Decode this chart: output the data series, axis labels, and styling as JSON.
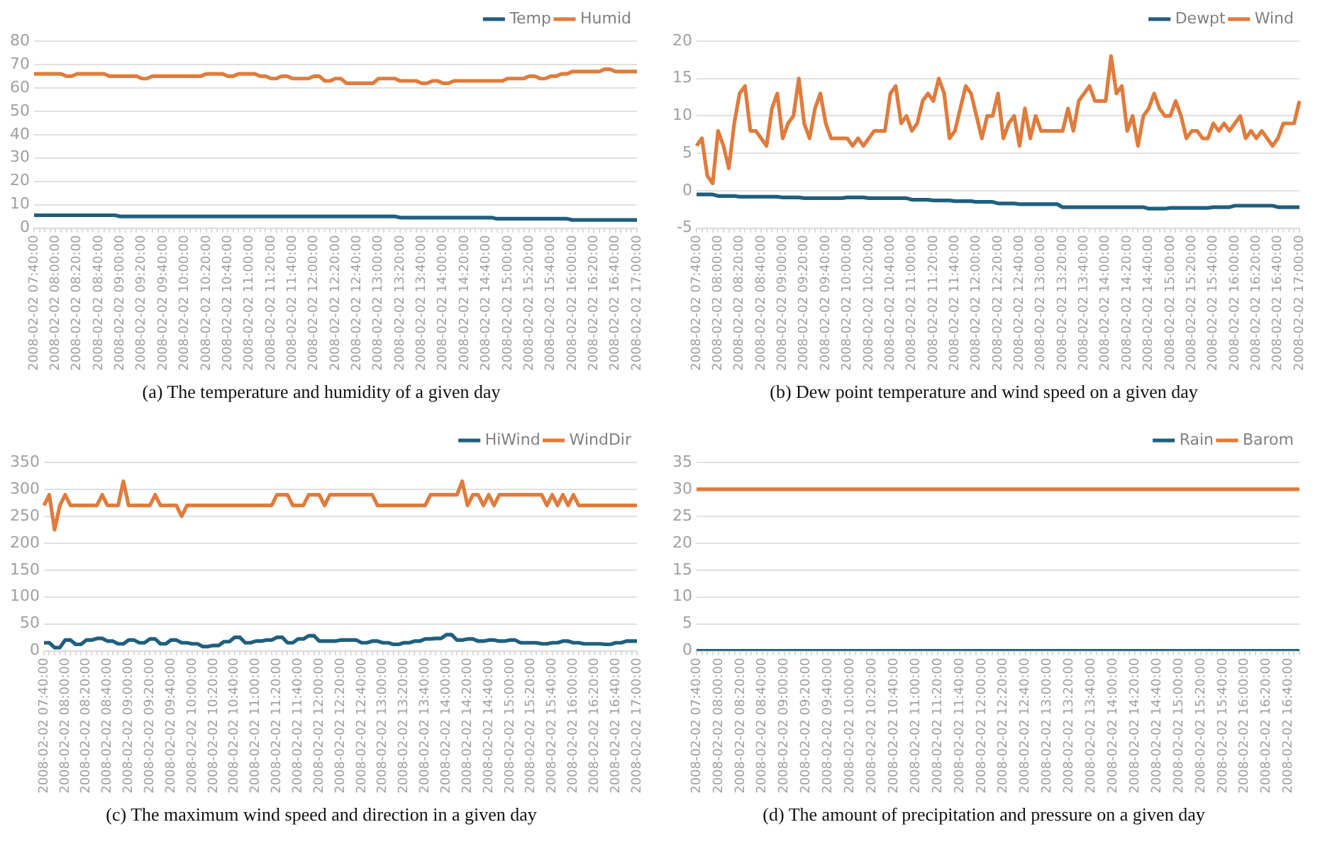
{
  "chart_data": [
    {
      "type": "line",
      "title": "(a) The temperature and humidity of a given day",
      "grid": "y",
      "legend": "top right",
      "marker": "none",
      "categories": [
        "2008-02-02 07:40:00",
        null,
        null,
        null,
        "2008-02-02 08:00:00",
        null,
        null,
        null,
        "2008-02-02 08:20:00",
        null,
        null,
        null,
        "2008-02-02 08:40:00",
        null,
        null,
        null,
        "2008-02-02 09:00:00",
        null,
        null,
        null,
        "2008-02-02 09:20:00",
        null,
        null,
        null,
        "2008-02-02 09:40:00",
        null,
        null,
        null,
        "2008-02-02 10:00:00",
        null,
        null,
        null,
        "2008-02-02 10:20:00",
        null,
        null,
        null,
        "2008-02-02 10:40:00",
        null,
        null,
        null,
        "2008-02-02 11:00:00",
        null,
        null,
        null,
        "2008-02-02 11:20:00",
        null,
        null,
        null,
        "2008-02-02 11:40:00",
        null,
        null,
        null,
        "2008-02-02 12:00:00",
        null,
        null,
        null,
        "2008-02-02 12:20:00",
        null,
        null,
        null,
        "2008-02-02 12:40:00",
        null,
        null,
        null,
        "2008-02-02 13:00:00",
        null,
        null,
        null,
        "2008-02-02 13:20:00",
        null,
        null,
        null,
        "2008-02-02 13:40:00",
        null,
        null,
        null,
        "2008-02-02 14:00:00",
        null,
        null,
        null,
        "2008-02-02 14:20:00",
        null,
        null,
        null,
        "2008-02-02 14:40:00",
        null,
        null,
        null,
        "2008-02-02 15:00:00",
        null,
        null,
        null,
        "2008-02-02 15:20:00",
        null,
        null,
        null,
        "2008-02-02 15:40:00",
        null,
        null,
        null,
        "2008-02-02 16:00:00",
        null,
        null,
        null,
        "2008-02-02 16:20:00",
        null,
        null,
        null,
        "2008-02-02 16:40:00",
        null,
        null,
        null,
        "2008-02-02 17:00:00"
      ],
      "ylim": [
        0,
        80
      ],
      "yticks": [
        0,
        10,
        20,
        30,
        40,
        50,
        60,
        70,
        80
      ],
      "series": [
        {
          "name": "Temp",
          "color": "#1f5f7e",
          "values": [
            5.5,
            5.5,
            5.5,
            5.5,
            5.5,
            5.5,
            5.5,
            5.5,
            5.5,
            5.5,
            5.5,
            5.5,
            5.5,
            5.5,
            5.5,
            5.5,
            5,
            5,
            5,
            5,
            5,
            5,
            5,
            5,
            5,
            5,
            5,
            5,
            5,
            5,
            5,
            5,
            5,
            5,
            5,
            5,
            5,
            5,
            5,
            5,
            5,
            5,
            5,
            5,
            5,
            5,
            5,
            5,
            5,
            5,
            5,
            5,
            5,
            5,
            5,
            5,
            5,
            5,
            5,
            5,
            5,
            5,
            5,
            5,
            5,
            5,
            5,
            5,
            4.5,
            4.5,
            4.5,
            4.5,
            4.5,
            4.5,
            4.5,
            4.5,
            4.5,
            4.5,
            4.5,
            4.5,
            4.5,
            4.5,
            4.5,
            4.5,
            4.5,
            4.5,
            4,
            4,
            4,
            4,
            4,
            4,
            4,
            4,
            4,
            4,
            4,
            4,
            4,
            4,
            3.5,
            3.5,
            3.5,
            3.5,
            3.5,
            3.5,
            3.5,
            3.5,
            3.5,
            3.5,
            3.5,
            3.5,
            3.5
          ]
        },
        {
          "name": "Humid",
          "color": "#e07b3c",
          "values": [
            66,
            66,
            66,
            66,
            66,
            66,
            65,
            65,
            66,
            66,
            66,
            66,
            66,
            66,
            65,
            65,
            65,
            65,
            65,
            65,
            64,
            64,
            65,
            65,
            65,
            65,
            65,
            65,
            65,
            65,
            65,
            65,
            66,
            66,
            66,
            66,
            65,
            65,
            66,
            66,
            66,
            66,
            65,
            65,
            64,
            64,
            65,
            65,
            64,
            64,
            64,
            64,
            65,
            65,
            63,
            63,
            64,
            64,
            62,
            62,
            62,
            62,
            62,
            62,
            64,
            64,
            64,
            64,
            63,
            63,
            63,
            63,
            62,
            62,
            63,
            63,
            62,
            62,
            63,
            63,
            63,
            63,
            63,
            63,
            63,
            63,
            63,
            63,
            64,
            64,
            64,
            64,
            65,
            65,
            64,
            64,
            65,
            65,
            66,
            66,
            67,
            67,
            67,
            67,
            67,
            67,
            68,
            68,
            67,
            67,
            67,
            67,
            67
          ]
        }
      ]
    },
    {
      "type": "line",
      "title": "(b) Dew point temperature and wind speed on a given day",
      "grid": "y",
      "legend": "top right",
      "marker": "none",
      "categories": [
        "2008-02-02 07:40:00",
        null,
        null,
        null,
        "2008-02-02 08:00:00",
        null,
        null,
        null,
        "2008-02-02 08:20:00",
        null,
        null,
        null,
        "2008-02-02 08:40:00",
        null,
        null,
        null,
        "2008-02-02 09:00:00",
        null,
        null,
        null,
        "2008-02-02 09:20:00",
        null,
        null,
        null,
        "2008-02-02 09:40:00",
        null,
        null,
        null,
        "2008-02-02 10:00:00",
        null,
        null,
        null,
        "2008-02-02 10:20:00",
        null,
        null,
        null,
        "2008-02-02 10:40:00",
        null,
        null,
        null,
        "2008-02-02 11:00:00",
        null,
        null,
        null,
        "2008-02-02 11:20:00",
        null,
        null,
        null,
        "2008-02-02 11:40:00",
        null,
        null,
        null,
        "2008-02-02 12:00:00",
        null,
        null,
        null,
        "2008-02-02 12:20:00",
        null,
        null,
        null,
        "2008-02-02 12:40:00",
        null,
        null,
        null,
        "2008-02-02 13:00:00",
        null,
        null,
        null,
        "2008-02-02 13:20:00",
        null,
        null,
        null,
        "2008-02-02 13:40:00",
        null,
        null,
        null,
        "2008-02-02 14:00:00",
        null,
        null,
        null,
        "2008-02-02 14:20:00",
        null,
        null,
        null,
        "2008-02-02 14:40:00",
        null,
        null,
        null,
        "2008-02-02 15:00:00",
        null,
        null,
        null,
        "2008-02-02 15:20:00",
        null,
        null,
        null,
        "2008-02-02 15:40:00",
        null,
        null,
        null,
        "2008-02-02 16:00:00",
        null,
        null,
        null,
        "2008-02-02 16:20:00",
        null,
        null,
        null,
        "2008-02-02 16:40:00",
        null,
        null,
        null,
        "2008-02-02 17:00:00"
      ],
      "ylim": [
        -5,
        20
      ],
      "yticks": [
        -5,
        0,
        5,
        10,
        15,
        20
      ],
      "series": [
        {
          "name": "Dewpt",
          "color": "#1f5f7e",
          "values": [
            -0.5,
            -0.5,
            -0.5,
            -0.5,
            -0.7,
            -0.7,
            -0.7,
            -0.7,
            -0.8,
            -0.8,
            -0.8,
            -0.8,
            -0.8,
            -0.8,
            -0.8,
            -0.8,
            -0.9,
            -0.9,
            -0.9,
            -0.9,
            -1,
            -1,
            -1,
            -1,
            -1,
            -1,
            -1,
            -1,
            -0.9,
            -0.9,
            -0.9,
            -0.9,
            -1,
            -1,
            -1,
            -1,
            -1,
            -1,
            -1,
            -1,
            -1.2,
            -1.2,
            -1.2,
            -1.2,
            -1.3,
            -1.3,
            -1.3,
            -1.3,
            -1.4,
            -1.4,
            -1.4,
            -1.4,
            -1.5,
            -1.5,
            -1.5,
            -1.5,
            -1.7,
            -1.7,
            -1.7,
            -1.7,
            -1.8,
            -1.8,
            -1.8,
            -1.8,
            -1.8,
            -1.8,
            -1.8,
            -1.8,
            -2.2,
            -2.2,
            -2.2,
            -2.2,
            -2.2,
            -2.2,
            -2.2,
            -2.2,
            -2.2,
            -2.2,
            -2.2,
            -2.2,
            -2.2,
            -2.2,
            -2.2,
            -2.2,
            -2.4,
            -2.4,
            -2.4,
            -2.4,
            -2.3,
            -2.3,
            -2.3,
            -2.3,
            -2.3,
            -2.3,
            -2.3,
            -2.3,
            -2.2,
            -2.2,
            -2.2,
            -2.2,
            -2,
            -2,
            -2,
            -2,
            -2,
            -2,
            -2,
            -2,
            -2.2,
            -2.2,
            -2.2,
            -2.2,
            -2.2
          ]
        },
        {
          "name": "Wind",
          "color": "#e07b3c",
          "values": [
            6,
            7,
            2,
            1,
            8,
            6,
            3,
            9,
            13,
            14,
            8,
            8,
            7,
            6,
            11,
            13,
            7,
            9,
            10,
            15,
            9,
            7,
            11,
            13,
            9,
            7,
            7,
            7,
            7,
            6,
            7,
            6,
            7,
            8,
            8,
            8,
            13,
            14,
            9,
            10,
            8,
            9,
            12,
            13,
            12,
            15,
            13,
            7,
            8,
            11,
            14,
            13,
            10,
            7,
            10,
            10,
            13,
            7,
            9,
            10,
            6,
            11,
            7,
            10,
            8,
            8,
            8,
            8,
            8,
            11,
            8,
            12,
            13,
            14,
            12,
            12,
            12,
            18,
            13,
            14,
            8,
            10,
            6,
            10,
            11,
            13,
            11,
            10,
            10,
            12,
            10,
            7,
            8,
            8,
            7,
            7,
            9,
            8,
            9,
            8,
            9,
            10,
            7,
            8,
            7,
            8,
            7,
            6,
            7,
            9,
            9,
            9,
            12
          ]
        }
      ]
    },
    {
      "type": "line",
      "title": "(c) The maximum wind speed and direction in a given day",
      "grid": "y",
      "legend": "top right",
      "marker": "none",
      "categories": [
        "2008-02-02 07:40:00",
        null,
        null,
        null,
        "2008-02-02 08:00:00",
        null,
        null,
        null,
        "2008-02-02 08:20:00",
        null,
        null,
        null,
        "2008-02-02 08:40:00",
        null,
        null,
        null,
        "2008-02-02 09:00:00",
        null,
        null,
        null,
        "2008-02-02 09:20:00",
        null,
        null,
        null,
        "2008-02-02 09:40:00",
        null,
        null,
        null,
        "2008-02-02 10:00:00",
        null,
        null,
        null,
        "2008-02-02 10:20:00",
        null,
        null,
        null,
        "2008-02-02 10:40:00",
        null,
        null,
        null,
        "2008-02-02 11:00:00",
        null,
        null,
        null,
        "2008-02-02 11:20:00",
        null,
        null,
        null,
        "2008-02-02 11:40:00",
        null,
        null,
        null,
        "2008-02-02 12:00:00",
        null,
        null,
        null,
        "2008-02-02 12:20:00",
        null,
        null,
        null,
        "2008-02-02 12:40:00",
        null,
        null,
        null,
        "2008-02-02 13:00:00",
        null,
        null,
        null,
        "2008-02-02 13:20:00",
        null,
        null,
        null,
        "2008-02-02 13:40:00",
        null,
        null,
        null,
        "2008-02-02 14:00:00",
        null,
        null,
        null,
        "2008-02-02 14:20:00",
        null,
        null,
        null,
        "2008-02-02 14:40:00",
        null,
        null,
        null,
        "2008-02-02 15:00:00",
        null,
        null,
        null,
        "2008-02-02 15:20:00",
        null,
        null,
        null,
        "2008-02-02 15:40:00",
        null,
        null,
        null,
        "2008-02-02 16:00:00",
        null,
        null,
        null,
        "2008-02-02 16:20:00",
        null,
        null,
        null,
        "2008-02-02 16:40:00",
        null,
        null,
        null,
        "2008-02-02 17:00:00"
      ],
      "ylim": [
        0,
        350
      ],
      "yticks": [
        0,
        50,
        100,
        150,
        200,
        250,
        300,
        350
      ],
      "series": [
        {
          "name": "HiWind",
          "color": "#1f5f7e",
          "values": [
            15,
            15,
            6,
            6,
            20,
            20,
            12,
            12,
            20,
            20,
            23,
            23,
            18,
            18,
            13,
            13,
            20,
            20,
            15,
            15,
            22,
            22,
            13,
            13,
            20,
            20,
            15,
            15,
            13,
            13,
            8,
            8,
            10,
            10,
            17,
            17,
            25,
            25,
            15,
            15,
            18,
            18,
            20,
            20,
            25,
            25,
            15,
            15,
            22,
            22,
            28,
            28,
            18,
            18,
            18,
            18,
            20,
            20,
            20,
            20,
            15,
            15,
            18,
            18,
            15,
            15,
            12,
            12,
            15,
            15,
            18,
            18,
            22,
            22,
            23,
            23,
            30,
            30,
            20,
            20,
            22,
            22,
            18,
            18,
            20,
            20,
            18,
            18,
            20,
            20,
            15,
            15,
            15,
            15,
            13,
            13,
            15,
            15,
            18,
            18,
            15,
            15,
            13,
            13,
            13,
            13,
            12,
            12,
            15,
            15,
            18,
            18,
            18
          ]
        },
        {
          "name": "WindDir",
          "color": "#e07b3c",
          "values": [
            270,
            290,
            225,
            270,
            290,
            270,
            270,
            270,
            270,
            270,
            270,
            290,
            270,
            270,
            270,
            315,
            270,
            270,
            270,
            270,
            270,
            290,
            270,
            270,
            270,
            270,
            250,
            270,
            270,
            270,
            270,
            270,
            270,
            270,
            270,
            270,
            270,
            270,
            270,
            270,
            270,
            270,
            270,
            270,
            290,
            290,
            290,
            270,
            270,
            270,
            290,
            290,
            290,
            270,
            290,
            290,
            290,
            290,
            290,
            290,
            290,
            290,
            290,
            270,
            270,
            270,
            270,
            270,
            270,
            270,
            270,
            270,
            270,
            290,
            290,
            290,
            290,
            290,
            290,
            315,
            270,
            290,
            290,
            270,
            290,
            270,
            290,
            290,
            290,
            290,
            290,
            290,
            290,
            290,
            290,
            270,
            290,
            270,
            290,
            270,
            290,
            270,
            270,
            270,
            270,
            270,
            270,
            270,
            270,
            270,
            270,
            270,
            270
          ]
        }
      ]
    },
    {
      "type": "line",
      "title": "(d) The amount of precipitation and pressure on a given day",
      "grid": "y",
      "legend": "top right",
      "marker": "none",
      "categories": [
        "2008-02-02 07:40:00",
        null,
        null,
        null,
        "2008-02-02 08:00:00",
        null,
        null,
        null,
        "2008-02-02 08:20:00",
        null,
        null,
        null,
        "2008-02-02 08:40:00",
        null,
        null,
        null,
        "2008-02-02 09:00:00",
        null,
        null,
        null,
        "2008-02-02 09:20:00",
        null,
        null,
        null,
        "2008-02-02 09:40:00",
        null,
        null,
        null,
        "2008-02-02 10:00:00",
        null,
        null,
        null,
        "2008-02-02 10:20:00",
        null,
        null,
        null,
        "2008-02-02 10:40:00",
        null,
        null,
        null,
        "2008-02-02 11:00:00",
        null,
        null,
        null,
        "2008-02-02 11:20:00",
        null,
        null,
        null,
        "2008-02-02 11:40:00",
        null,
        null,
        null,
        "2008-02-02 12:00:00",
        null,
        null,
        null,
        "2008-02-02 12:20:00",
        null,
        null,
        null,
        "2008-02-02 12:40:00",
        null,
        null,
        null,
        "2008-02-02 13:00:00",
        null,
        null,
        null,
        "2008-02-02 13:20:00",
        null,
        null,
        null,
        "2008-02-02 13:40:00",
        null,
        null,
        null,
        "2008-02-02 14:00:00",
        null,
        null,
        null,
        "2008-02-02 14:20:00",
        null,
        null,
        null,
        "2008-02-02 14:40:00",
        null,
        null,
        null,
        "2008-02-02 15:00:00",
        null,
        null,
        null,
        "2008-02-02 15:20:00",
        null,
        null,
        null,
        "2008-02-02 15:40:00",
        null,
        null,
        null,
        "2008-02-02 16:00:00",
        null,
        null,
        null,
        "2008-02-02 16:20:00",
        null,
        null,
        null,
        "2008-02-02 16:40:00",
        null,
        null
      ],
      "ylim": [
        0,
        35
      ],
      "yticks": [
        0,
        5,
        10,
        15,
        20,
        25,
        30,
        35
      ],
      "series": [
        {
          "name": "Rain",
          "color": "#1f5f7e",
          "values": [
            0,
            0,
            0,
            0,
            0,
            0,
            0,
            0,
            0,
            0,
            0,
            0,
            0,
            0,
            0,
            0,
            0,
            0,
            0,
            0,
            0,
            0,
            0,
            0,
            0,
            0,
            0,
            0,
            0,
            0,
            0,
            0,
            0,
            0,
            0,
            0,
            0,
            0,
            0,
            0,
            0,
            0,
            0,
            0,
            0,
            0,
            0,
            0,
            0,
            0,
            0,
            0,
            0,
            0,
            0,
            0,
            0,
            0,
            0,
            0,
            0,
            0,
            0,
            0,
            0,
            0,
            0,
            0,
            0,
            0,
            0,
            0,
            0,
            0,
            0,
            0,
            0,
            0,
            0,
            0,
            0,
            0,
            0,
            0,
            0,
            0,
            0,
            0,
            0,
            0,
            0,
            0,
            0,
            0,
            0,
            0,
            0,
            0,
            0,
            0,
            0,
            0,
            0,
            0,
            0,
            0,
            0,
            0,
            0,
            0,
            0
          ]
        },
        {
          "name": "Barom",
          "color": "#e07b3c",
          "values": [
            30,
            30,
            30,
            30,
            30,
            30,
            30,
            30,
            30,
            30,
            30,
            30,
            30,
            30,
            30,
            30,
            30,
            30,
            30,
            30,
            30,
            30,
            30,
            30,
            30,
            30,
            30,
            30,
            30,
            30,
            30,
            30,
            30,
            30,
            30,
            30,
            30,
            30,
            30,
            30,
            30,
            30,
            30,
            30,
            30,
            30,
            30,
            30,
            30,
            30,
            30,
            30,
            30,
            30,
            30,
            30,
            30,
            30,
            30,
            30,
            30,
            30,
            30,
            30,
            30,
            30,
            30,
            30,
            30,
            30,
            30,
            30,
            30,
            30,
            30,
            30,
            30,
            30,
            30,
            30,
            30,
            30,
            30,
            30,
            30,
            30,
            30,
            30,
            30,
            30,
            30,
            30,
            30,
            30,
            30,
            30,
            30,
            30,
            30,
            30,
            30,
            30,
            30,
            30,
            30,
            30,
            30,
            30,
            30,
            30,
            30
          ]
        }
      ]
    }
  ]
}
